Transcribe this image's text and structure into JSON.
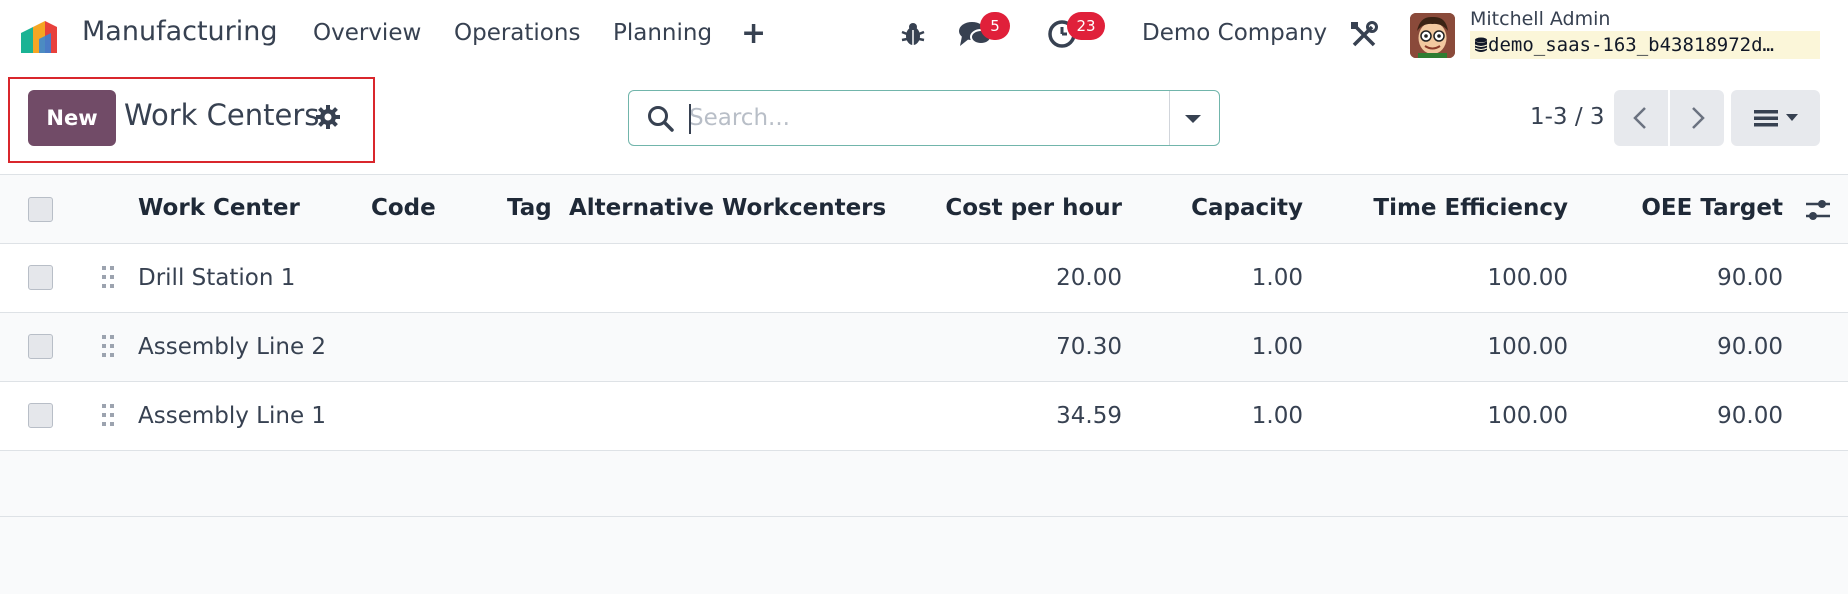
{
  "navbar": {
    "app_name": "Manufacturing",
    "menu": [
      "Overview",
      "Operations",
      "Planning"
    ],
    "add_icon": "plus-icon",
    "messages_count": "5",
    "activities_count": "23",
    "company": "Demo Company",
    "user_name": "Mitchell Admin",
    "database": "demo_saas-163_b43818972d…"
  },
  "control_panel": {
    "new_label": "New",
    "title": "Work Centers",
    "search_placeholder": "Search...",
    "pager": "1-3 / 3"
  },
  "table": {
    "columns": [
      "Work Center",
      "Code",
      "Tag",
      "Alternative Workcenters",
      "Cost per hour",
      "Capacity",
      "Time Efficiency",
      "OEE Target"
    ],
    "rows": [
      {
        "name": "Drill Station 1",
        "cost": "20.00",
        "capacity": "1.00",
        "efficiency": "100.00",
        "oee": "90.00"
      },
      {
        "name": "Assembly Line 2",
        "cost": "70.30",
        "capacity": "1.00",
        "efficiency": "100.00",
        "oee": "90.00"
      },
      {
        "name": "Assembly Line 1",
        "cost": "34.59",
        "capacity": "1.00",
        "efficiency": "100.00",
        "oee": "90.00"
      }
    ]
  },
  "colors": {
    "brand": "#714b67",
    "badge": "#e0203a",
    "highlight": "#d9262c"
  }
}
